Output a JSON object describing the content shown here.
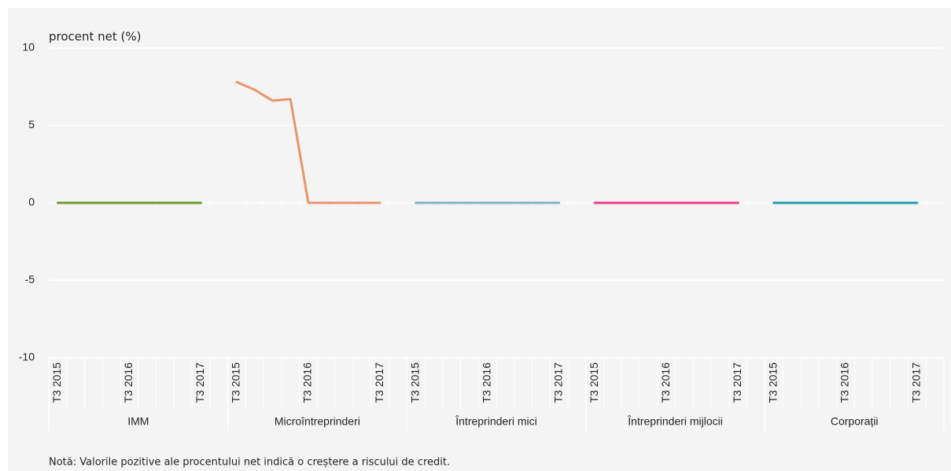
{
  "chart_data": {
    "type": "line",
    "y_label": "procent net (%)",
    "note": "Notă: Valorile pozitive ale procentului net indică o creștere a riscului de credit.",
    "categories": [
      "T3 2015",
      null,
      null,
      null,
      "T3 2016",
      null,
      null,
      null,
      "T3 2017"
    ],
    "series": [
      {
        "name": "IMM",
        "color": "#6e9a35",
        "values": [
          0,
          0,
          0,
          0,
          0,
          0,
          0,
          0,
          0
        ]
      },
      {
        "name": "Microîntreprinderi",
        "color": "#e8956b",
        "values": [
          7.8,
          7.3,
          6.6,
          6.7,
          0,
          0,
          0,
          0,
          0
        ]
      },
      {
        "name": "Întreprinderi mici",
        "color": "#7fb3c5",
        "values": [
          0,
          0,
          0,
          0,
          0,
          0,
          0,
          0,
          0
        ]
      },
      {
        "name": "Întreprinderi mijlocii",
        "color": "#e83d84",
        "values": [
          0,
          0,
          0,
          0,
          0,
          0,
          0,
          0,
          0
        ]
      },
      {
        "name": "Corporații",
        "color": "#1f9bb0",
        "values": [
          0,
          0,
          0,
          0,
          0,
          0,
          0,
          0,
          0
        ]
      }
    ],
    "ylim": [
      -10,
      10
    ],
    "yticks": [
      -10,
      -5,
      0,
      5,
      10
    ],
    "grid": true
  }
}
